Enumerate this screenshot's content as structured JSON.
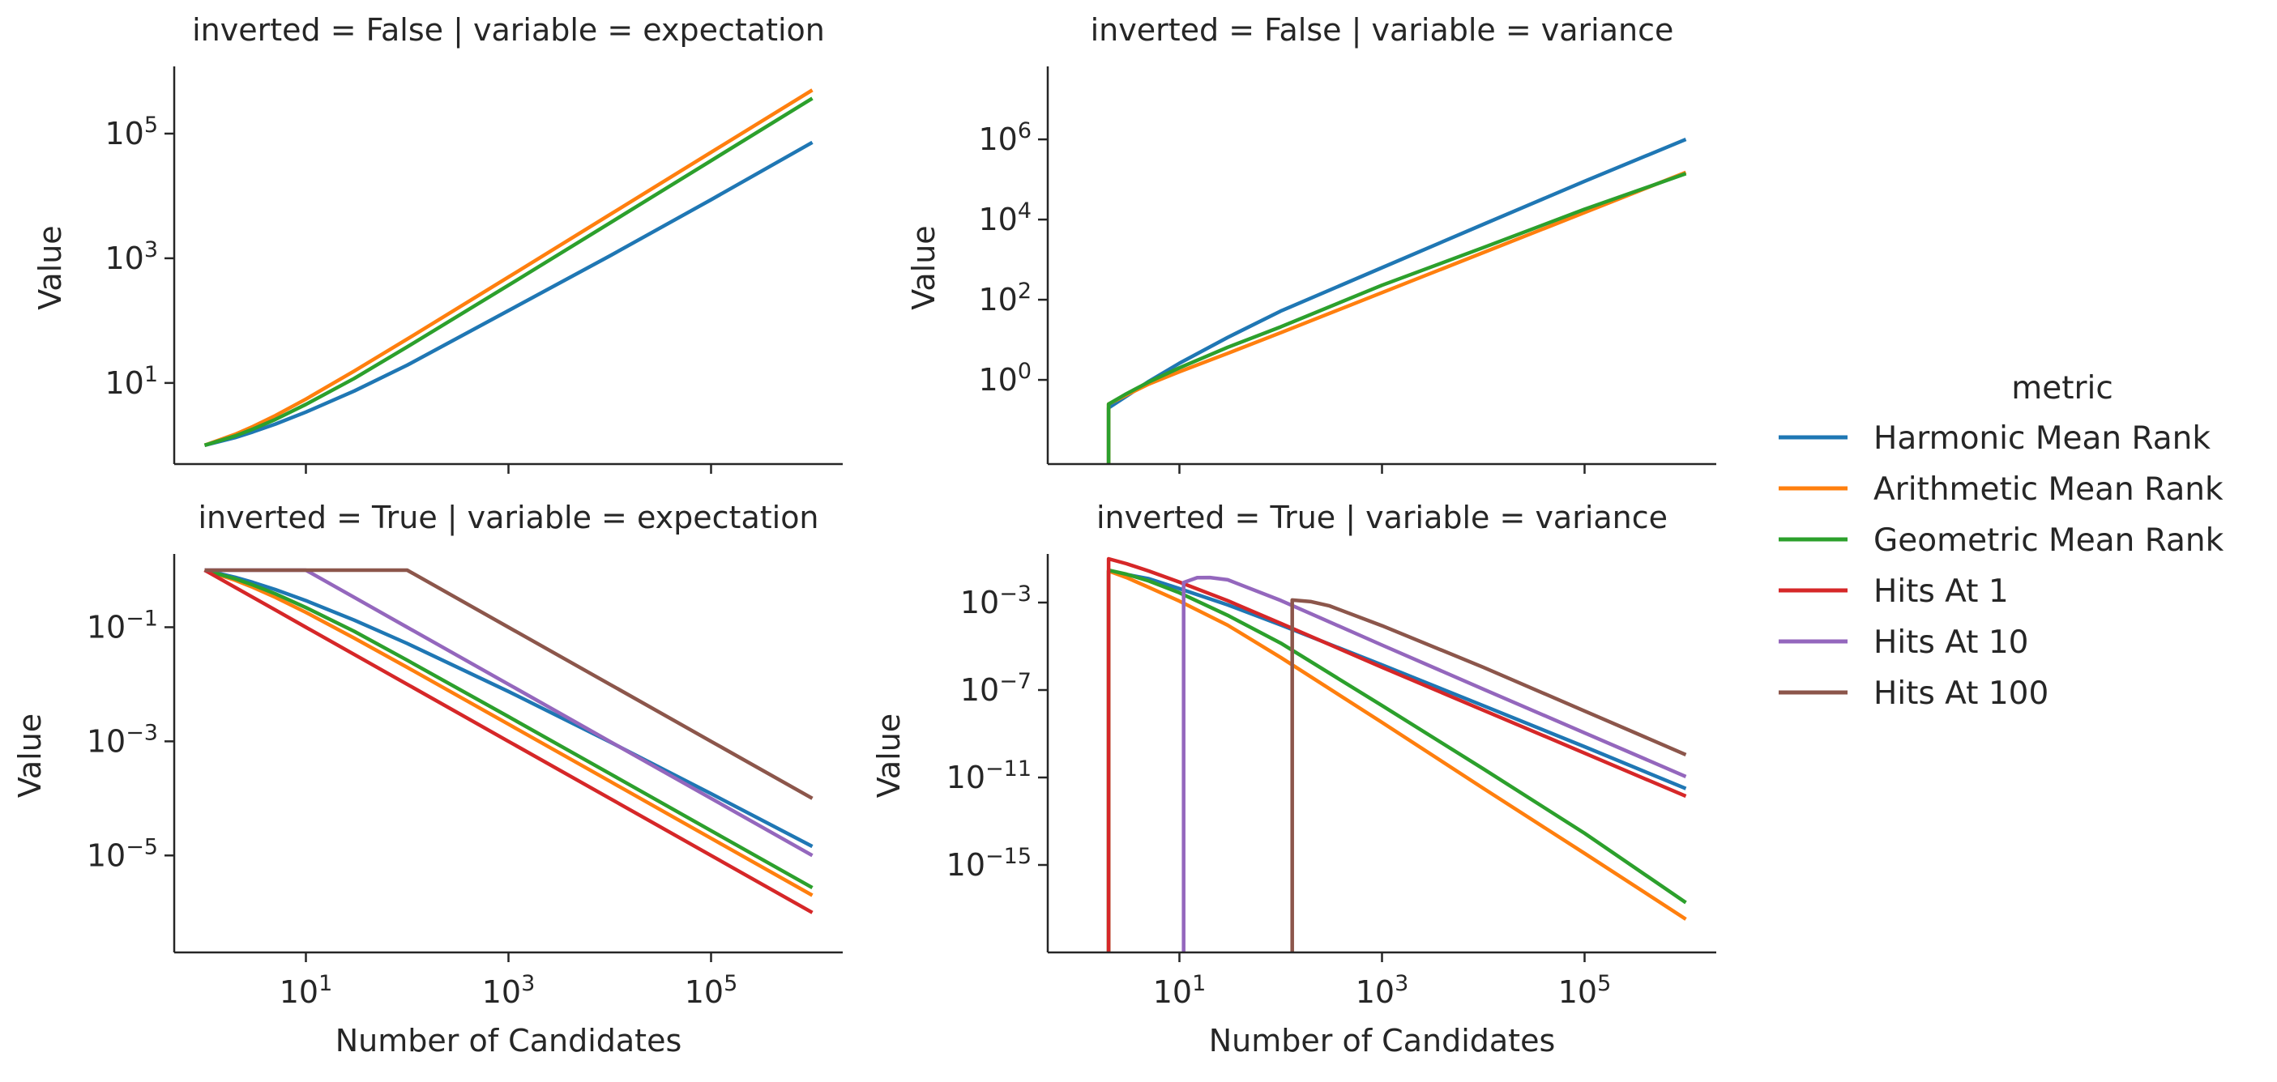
{
  "chart_data": {
    "type": "line",
    "x_label": "Number of Candidates",
    "y_label": "Value",
    "x_scale": "log",
    "y_scale": "log",
    "x_range": [
      1,
      1000000
    ],
    "x_tick_exponents": [
      1,
      3,
      5
    ],
    "grid": false,
    "legend": {
      "title": "metric",
      "placement": "right",
      "entries": [
        {
          "name": "Harmonic Mean Rank",
          "color": "#1f77b4"
        },
        {
          "name": "Arithmetic Mean Rank",
          "color": "#ff7f0e"
        },
        {
          "name": "Geometric Mean Rank",
          "color": "#2ca02c"
        },
        {
          "name": "Hits At 1",
          "color": "#d62728"
        },
        {
          "name": "Hits At 10",
          "color": "#9467bd"
        },
        {
          "name": "Hits At 100",
          "color": "#8c564b"
        }
      ]
    },
    "facets": [
      {
        "title": "inverted = False | variable = expectation",
        "y_range": [
          0.5,
          1000000
        ],
        "y_tick_exponents": [
          1,
          3,
          5
        ],
        "series": [
          {
            "name": "Harmonic Mean Rank",
            "color": "#1f77b4",
            "x": [
              1,
              2,
              3,
              5,
              10,
              30,
              100,
              1000,
              10000,
              100000,
              1000000
            ],
            "y": [
              1,
              1.33,
              1.64,
              2.19,
              3.41,
              7.43,
              19.3,
              145,
              1090,
              8690,
              72400
            ]
          },
          {
            "name": "Arithmetic Mean Rank",
            "color": "#ff7f0e",
            "x": [
              1,
              2,
              3,
              5,
              10,
              30,
              100,
              1000,
              10000,
              100000,
              1000000
            ],
            "y": [
              1,
              1.5,
              2,
              3,
              5.5,
              15.5,
              50.5,
              500.5,
              5000.5,
              50000.5,
              500000.5
            ]
          },
          {
            "name": "Geometric Mean Rank",
            "color": "#2ca02c",
            "x": [
              1,
              2,
              3,
              5,
              10,
              30,
              100,
              1000,
              10000,
              100000,
              1000000
            ],
            "y": [
              1,
              1.41,
              1.82,
              2.6,
              4.53,
              11.8,
              37.9,
              369,
              3680,
              36800,
              368000
            ]
          }
        ]
      },
      {
        "title": "inverted = False | variable = variance",
        "y_range": [
          0.00794,
          50000000
        ],
        "y_tick_exponents": [
          0,
          2,
          4,
          6
        ],
        "series": [
          {
            "name": "Harmonic Mean Rank",
            "color": "#1f77b4",
            "x": [
              1,
              2,
              2,
              3,
              5,
              10,
              30,
              100,
              1000,
              10000,
              100000,
              1000000
            ],
            "y": [
              0.0001,
              0.0001,
              0.2,
              0.39,
              0.92,
              2.6,
              11.5,
              52,
              630,
              7600,
              90000,
              1000000
            ]
          },
          {
            "name": "Arithmetic Mean Rank",
            "color": "#ff7f0e",
            "x": [
              1,
              2,
              2,
              3,
              5,
              10,
              30,
              100,
              1000,
              10000,
              100000,
              1000000
            ],
            "y": [
              0.0001,
              0.0001,
              0.25,
              0.42,
              0.79,
              1.6,
              4.6,
              15,
              150,
              1500,
              15000,
              150000
            ]
          },
          {
            "name": "Geometric Mean Rank",
            "color": "#2ca02c",
            "x": [
              1,
              2,
              2,
              3,
              5,
              10,
              30,
              100,
              1000,
              10000,
              100000,
              1000000
            ],
            "y": [
              0.0001,
              0.0001,
              0.25,
              0.45,
              0.89,
              2.0,
              6.5,
              21,
              230,
              2000,
              18000,
              140000
            ]
          }
        ]
      },
      {
        "title": "inverted = True | variable = expectation",
        "y_range": [
          2e-07,
          1.58
        ],
        "y_tick_exponents": [
          -1,
          -3,
          -5
        ],
        "series": [
          {
            "name": "Harmonic Mean Rank",
            "color": "#1f77b4",
            "x": [
              1,
              2,
              3,
              5,
              10,
              30,
              100,
              1000,
              10000,
              100000,
              1000000
            ],
            "y": [
              1,
              0.75,
              0.611,
              0.457,
              0.293,
              0.133,
              0.0519,
              0.00749,
              0.000979,
              0.000121,
              1.44e-05
            ]
          },
          {
            "name": "Arithmetic Mean Rank",
            "color": "#ff7f0e",
            "x": [
              1,
              2,
              3,
              5,
              10,
              30,
              100,
              1000,
              10000,
              100000,
              1000000
            ],
            "y": [
              1,
              0.667,
              0.5,
              0.333,
              0.182,
              0.0645,
              0.0198,
              0.002,
              0.0002,
              2e-05,
              2e-06
            ]
          },
          {
            "name": "Geometric Mean Rank",
            "color": "#2ca02c",
            "x": [
              1,
              2,
              3,
              5,
              10,
              30,
              100,
              1000,
              10000,
              100000,
              1000000
            ],
            "y": [
              1,
              0.707,
              0.55,
              0.385,
              0.221,
              0.0848,
              0.0264,
              0.00271,
              0.000272,
              2.72e-05,
              2.72e-06
            ]
          },
          {
            "name": "Hits At 1",
            "color": "#d62728",
            "x": [
              1,
              2,
              3,
              5,
              10,
              30,
              100,
              1000,
              10000,
              100000,
              1000000
            ],
            "y": [
              1,
              0.5,
              0.333,
              0.2,
              0.1,
              0.0333,
              0.01,
              0.001,
              0.0001,
              1e-05,
              1e-06
            ]
          },
          {
            "name": "Hits At 10",
            "color": "#9467bd",
            "x": [
              1,
              5,
              10,
              30,
              100,
              1000,
              10000,
              100000,
              1000000
            ],
            "y": [
              1,
              1,
              1,
              0.333,
              0.1,
              0.01,
              0.001,
              0.0001,
              1e-05
            ]
          },
          {
            "name": "Hits At 100",
            "color": "#8c564b",
            "x": [
              1,
              10,
              100,
              1000,
              10000,
              100000,
              1000000
            ],
            "y": [
              1,
              1,
              1,
              0.1,
              0.01,
              0.001,
              0.0001
            ]
          }
        ]
      },
      {
        "title": "inverted = True | variable = variance",
        "y_range": [
          1e-19,
          0.1
        ],
        "y_tick_exponents": [
          -3,
          -7,
          -11,
          -15
        ],
        "series": [
          {
            "name": "Harmonic Mean Rank",
            "color": "#1f77b4",
            "x": [
              2,
              2,
              3,
              5,
              10,
              30,
              100,
              1000,
              10000,
              100000,
              1000000
            ],
            "y": [
              1e-30,
              0.0278,
              0.0193,
              0.0123,
              0.00432,
              0.000783,
              9.52e-05,
              1.41e-06,
              1.93e-08,
              2.55e-10,
              3.1e-12
            ]
          },
          {
            "name": "Arithmetic Mean Rank",
            "color": "#ff7f0e",
            "x": [
              2,
              2,
              3,
              5,
              10,
              30,
              100,
              1000,
              10000,
              100000,
              1000000
            ],
            "y": [
              1e-30,
              0.0278,
              0.0139,
              0.00493,
              0.00117,
              9.22e-05,
              3.09e-06,
              3.3e-09,
              3.2e-12,
              3.4e-15,
              3.3e-18
            ]
          },
          {
            "name": "Geometric Mean Rank",
            "color": "#2ca02c",
            "x": [
              2,
              2,
              3,
              5,
              10,
              30,
              100,
              1000,
              10000,
              100000,
              1000000
            ],
            "y": [
              1e-30,
              0.03,
              0.0197,
              0.0097,
              0.0028,
              0.00026,
              1.39e-05,
              1.94e-08,
              2.5e-11,
              2.8e-14,
              1.9e-17
            ]
          },
          {
            "name": "Hits At 1",
            "color": "#d62728",
            "x": [
              2,
              2,
              3,
              5,
              10,
              30,
              100,
              1000,
              10000,
              100000,
              1000000
            ],
            "y": [
              1e-30,
              0.1,
              0.06,
              0.0277,
              0.00862,
              0.00122,
              0.000112,
              1.1e-06,
              1.2e-08,
              1.3e-10,
              1.4e-12
            ]
          },
          {
            "name": "Hits At 10",
            "color": "#9467bd",
            "x": [
              11,
              11,
              15,
              20,
              30,
              100,
              1000,
              10000,
              100000,
              1000000
            ],
            "y": [
              1e-30,
              0.0083,
              0.0138,
              0.0139,
              0.011,
              0.00125,
              1.14e-05,
              1.1e-07,
              1.1e-09,
              1.1e-11
            ]
          },
          {
            "name": "Hits At 100",
            "color": "#8c564b",
            "x": [
              130,
              130,
              200,
              300,
              1000,
              10000,
              100000,
              1000000
            ],
            "y": [
              1e-30,
              0.0013,
              0.0011,
              0.00072,
              8.7e-05,
              1.1e-06,
              1.1e-08,
              1.1e-10
            ]
          }
        ]
      }
    ]
  }
}
